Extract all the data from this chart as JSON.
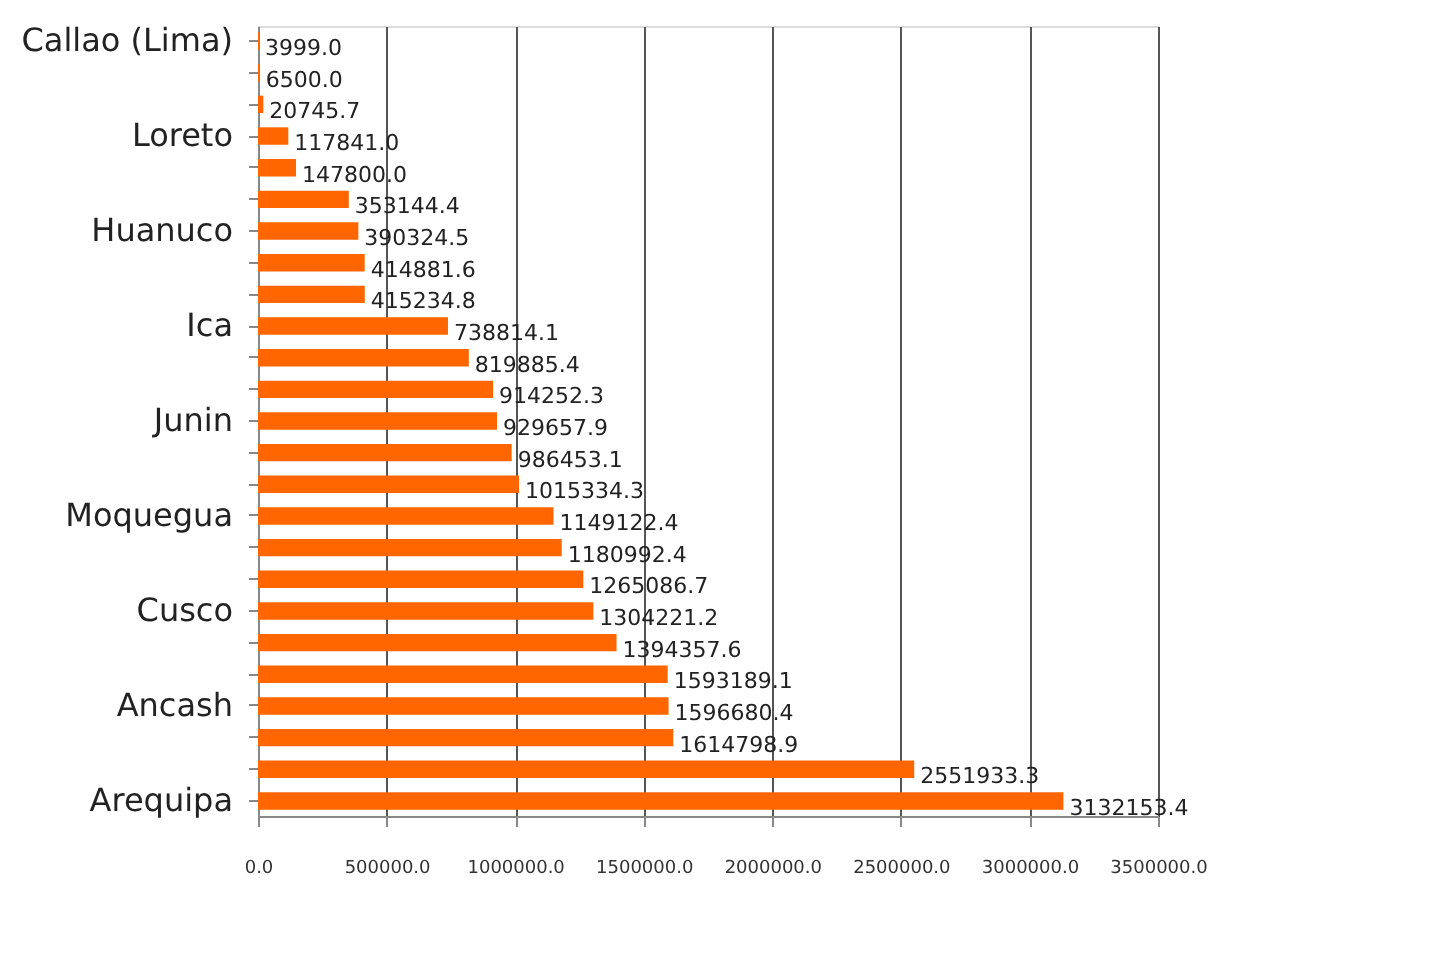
{
  "chart_data": {
    "type": "bar",
    "orientation": "horizontal",
    "categories": [
      "Callao (Lima)",
      null,
      null,
      "Loreto",
      null,
      null,
      "Huanuco",
      null,
      null,
      "Ica",
      null,
      null,
      "Junin",
      null,
      null,
      "Moquegua",
      null,
      null,
      "Cusco",
      null,
      null,
      "Ancash",
      null,
      null,
      "Arequipa"
    ],
    "values": [
      3999.0,
      6500.0,
      20745.7,
      117841.0,
      147800.0,
      353144.4,
      390324.5,
      414881.6,
      415234.8,
      738814.1,
      819885.4,
      914252.3,
      929657.9,
      986453.1,
      1015334.3,
      1149122.4,
      1180992.4,
      1265086.7,
      1304221.2,
      1394357.6,
      1593189.1,
      1596680.4,
      1614798.9,
      2551933.3,
      3132153.4
    ],
    "value_labels": [
      "3999.0",
      "6500.0",
      "20745.7",
      "117841.0",
      "147800.0",
      "353144.4",
      "390324.5",
      "414881.6",
      "415234.8",
      "738814.1",
      "819885.4",
      "914252.3",
      "929657.9",
      "986453.1",
      "1015334.3",
      "1149122.4",
      "1180992.4",
      "1265086.7",
      "1304221.2",
      "1394357.6",
      "1593189.1",
      "1596680.4",
      "1614798.9",
      "2551933.3",
      "3132153.4"
    ],
    "color": "#ff6600",
    "xlim": [
      0,
      3500000
    ],
    "xticks": [
      {
        "value": 0,
        "label": "0.0"
      },
      {
        "value": 500000,
        "label": "500000.0"
      },
      {
        "value": 1000000,
        "label": "1000000.0"
      },
      {
        "value": 1500000,
        "label": "1500000.0"
      },
      {
        "value": 2000000,
        "label": "2000000.0"
      },
      {
        "value": 2500000,
        "label": "2500000.0"
      },
      {
        "value": 3000000,
        "label": "3000000.0"
      },
      {
        "value": 3500000,
        "label": "3500000.0"
      }
    ],
    "grid": "x"
  }
}
